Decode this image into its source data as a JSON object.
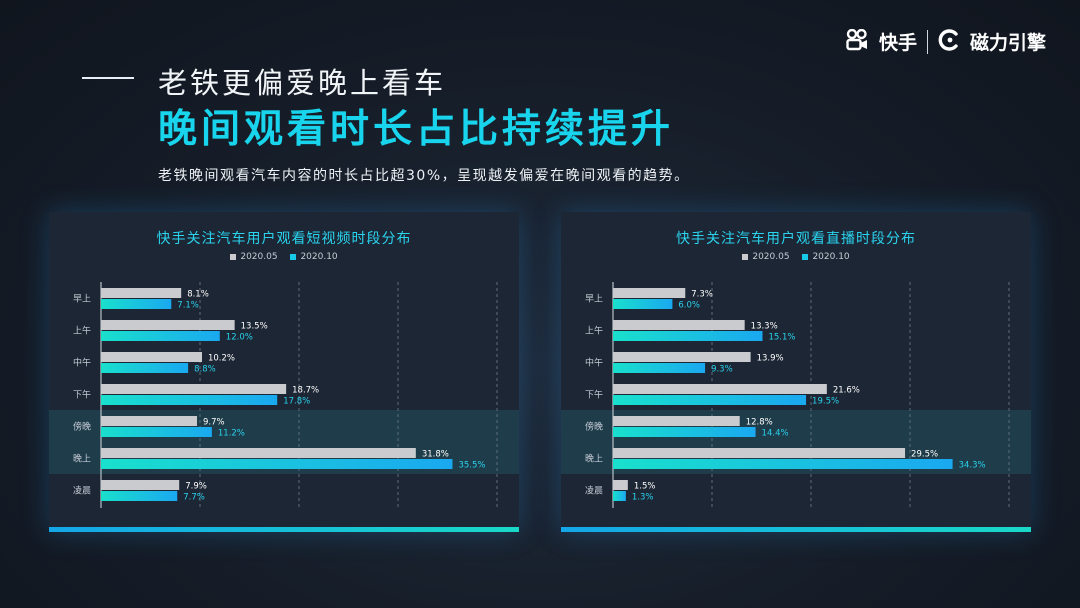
{
  "header": {
    "subtitle": "老铁更偏爱晚上看车",
    "headline": "晚间观看时长占比持续提升",
    "description": "老铁晚间观看汽车内容的时长占比超30%，呈现越发偏爱在晚间观看的趋势。"
  },
  "brand": {
    "kuaishou": "快手",
    "cili": "磁力引擎"
  },
  "colors": {
    "series_2020_05": "#c9cbcf",
    "series_2020_10_start": "#19e0cc",
    "series_2020_10_end": "#1aa8f0",
    "label_2020_05": "#ffffff",
    "label_2020_10": "#2ad3ee",
    "highlight_band": "#1f4450"
  },
  "chart_data": [
    {
      "type": "bar",
      "orientation": "horizontal",
      "title": "快手关注汽车用户观看短视频时段分布",
      "categories": [
        "早上",
        "上午",
        "中午",
        "下午",
        "傍晚",
        "晚上",
        "凌晨"
      ],
      "series": [
        {
          "name": "2020.05",
          "values": [
            8.1,
            13.5,
            10.2,
            18.7,
            9.7,
            31.8,
            7.9
          ]
        },
        {
          "name": "2020.10",
          "values": [
            7.1,
            12.0,
            8.8,
            17.8,
            11.2,
            35.5,
            7.7
          ]
        }
      ],
      "value_suffix": "%",
      "highlighted_categories": [
        "傍晚",
        "晚上"
      ],
      "xlim": [
        0,
        40
      ],
      "grid": "vertical dashed",
      "legend_position": "top-center"
    },
    {
      "type": "bar",
      "orientation": "horizontal",
      "title": "快手关注汽车用户观看直播时段分布",
      "categories": [
        "早上",
        "上午",
        "中午",
        "下午",
        "傍晚",
        "晚上",
        "凌晨"
      ],
      "series": [
        {
          "name": "2020.05",
          "values": [
            7.3,
            13.3,
            13.9,
            21.6,
            12.8,
            29.5,
            1.5
          ]
        },
        {
          "name": "2020.10",
          "values": [
            6.0,
            15.1,
            9.3,
            19.5,
            14.4,
            34.3,
            1.3
          ]
        }
      ],
      "value_suffix": "%",
      "highlighted_categories": [
        "傍晚",
        "晚上"
      ],
      "xlim": [
        0,
        40
      ],
      "grid": "vertical dashed",
      "legend_position": "top-center"
    }
  ]
}
